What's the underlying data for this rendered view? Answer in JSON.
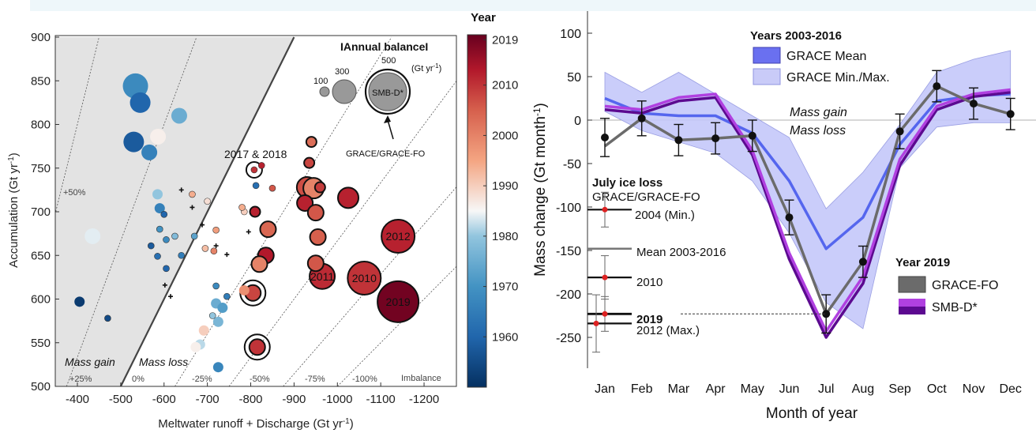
{
  "chart_data": [
    {
      "type": "scatter",
      "xlabel": "Meltwater runoff + Discharge (Gt yr",
      "xlabel_sup": "-1",
      "xlabel_end": ")",
      "ylabel": "Accumulation  (Gt yr",
      "ylabel_sup": "-1",
      "ylabel_end": ")",
      "xlim": [
        -350,
        -1250
      ],
      "ylim": [
        500,
        900
      ],
      "x_ticks": [
        -400,
        -500,
        -600,
        -700,
        -800,
        -900,
        -1000,
        -1100,
        -1200
      ],
      "y_ticks": [
        500,
        550,
        600,
        650,
        700,
        750,
        800,
        850,
        900
      ],
      "colorbar": {
        "title": "Year",
        "range": [
          1950,
          2020
        ],
        "ticks": [
          1960,
          1970,
          1980,
          1990,
          2000,
          2010,
          2019
        ]
      },
      "legend": {
        "title": "Annual balance",
        "unit": "(Gt yr",
        "unit_sup": "-1",
        "unit_end": ")",
        "sizes": [
          "100",
          "300",
          "500"
        ],
        "big_label": "SMB-D*",
        "pointer_label": "GRACE/GRACE-FO"
      },
      "region_labels": {
        "gain": "Mass gain",
        "loss": "Mass loss",
        "imbalance": "Imbalance"
      },
      "imbalance_lines": [
        "+50%",
        "+25%",
        "0%",
        "-25%",
        "-50%",
        "-75%",
        "-100%"
      ],
      "annotations": {
        "y2017_2018": "2017 & 2018"
      },
      "points": [
        {
          "x": -405,
          "y": 597,
          "year": 1952,
          "size": 3
        },
        {
          "x": -470,
          "y": 578,
          "year": 1955,
          "size": 2
        },
        {
          "x": -435,
          "y": 672,
          "year": 1984,
          "size": 4
        },
        {
          "x": -534,
          "y": 844,
          "year": 1968,
          "size": 6
        },
        {
          "x": -545,
          "y": 825,
          "year": 1960,
          "size": 5
        },
        {
          "x": -530,
          "y": 780,
          "year": 1958,
          "size": 5
        },
        {
          "x": -566,
          "y": 768,
          "year": 1966,
          "size": 4
        },
        {
          "x": -586,
          "y": 786,
          "year": 1986,
          "size": 4
        },
        {
          "x": -635,
          "y": 810,
          "year": 1975,
          "size": 4
        },
        {
          "x": -585,
          "y": 720,
          "year": 1980,
          "size": 3
        },
        {
          "x": -590,
          "y": 704,
          "year": 1966,
          "size": 3
        },
        {
          "x": -600,
          "y": 697,
          "year": 1960,
          "size": 2
        },
        {
          "x": -590,
          "y": 680,
          "year": 1970,
          "size": 2
        },
        {
          "x": -570,
          "y": 661,
          "year": 1958,
          "size": 2
        },
        {
          "x": -605,
          "y": 668,
          "year": 1968,
          "size": 2
        },
        {
          "x": -625,
          "y": 672,
          "year": 1978,
          "size": 2
        },
        {
          "x": -585,
          "y": 649,
          "year": 1962,
          "size": 2
        },
        {
          "x": -605,
          "y": 635,
          "year": 1960,
          "size": 2
        },
        {
          "x": -640,
          "y": 650,
          "year": 1965,
          "size": 2
        },
        {
          "x": -665,
          "y": 720,
          "year": 1994,
          "size": 2
        },
        {
          "x": -700,
          "y": 712,
          "year": 1988,
          "size": 2
        },
        {
          "x": -670,
          "y": 672,
          "year": 1973,
          "size": 2
        },
        {
          "x": -695,
          "y": 658,
          "year": 1992,
          "size": 2
        },
        {
          "x": -715,
          "y": 655,
          "year": 2000,
          "size": 2
        },
        {
          "x": -720,
          "y": 679,
          "year": 1996,
          "size": 2
        },
        {
          "x": -720,
          "y": 615,
          "year": 1968,
          "size": 2
        },
        {
          "x": -720,
          "y": 595,
          "year": 1975,
          "size": 3
        },
        {
          "x": -712,
          "y": 581,
          "year": 1980,
          "size": 2
        },
        {
          "x": -725,
          "y": 574,
          "year": 1977,
          "size": 3
        },
        {
          "x": -735,
          "y": 590,
          "year": 1972,
          "size": 3
        },
        {
          "x": -745,
          "y": 603,
          "year": 1965,
          "size": 2
        },
        {
          "x": -692,
          "y": 564,
          "year": 1990,
          "size": 3
        },
        {
          "x": -683,
          "y": 548,
          "year": 1982,
          "size": 3
        },
        {
          "x": -673,
          "y": 545,
          "year": 1986,
          "size": 3
        },
        {
          "x": -725,
          "y": 522,
          "year": 1967,
          "size": 3
        },
        {
          "x": -785,
          "y": 610,
          "year": 1998,
          "size": 3
        },
        {
          "x": -805,
          "y": 607,
          "year": 2008,
          "size": 4,
          "ring": true
        },
        {
          "x": -785,
          "y": 700,
          "year": 1990,
          "size": 2
        },
        {
          "x": -780,
          "y": 705,
          "year": 1994,
          "size": 2
        },
        {
          "x": -812,
          "y": 730,
          "year": 1962,
          "size": 2
        },
        {
          "x": -808,
          "y": 748,
          "year": 2010,
          "size": 2,
          "ring": true
        },
        {
          "x": -825,
          "y": 753,
          "year": 2012,
          "size": 2
        },
        {
          "x": -810,
          "y": 700,
          "year": 2012,
          "size": 3
        },
        {
          "x": -840,
          "y": 680,
          "year": 2004,
          "size": 4
        },
        {
          "x": -835,
          "y": 650,
          "year": 2013,
          "size": 4
        },
        {
          "x": -820,
          "y": 640,
          "year": 2000,
          "size": 4
        },
        {
          "x": -815,
          "y": 545,
          "year": 2010,
          "size": 4,
          "ring": true
        },
        {
          "x": -850,
          "y": 727,
          "year": 2006,
          "size": 2
        },
        {
          "x": -940,
          "y": 780,
          "year": 2003,
          "size": 3
        },
        {
          "x": -935,
          "y": 756,
          "year": 2008,
          "size": 3
        },
        {
          "x": -930,
          "y": 728,
          "year": 2007,
          "size": 5
        },
        {
          "x": -945,
          "y": 727,
          "year": 2000,
          "size": 5
        },
        {
          "x": -960,
          "y": 728,
          "year": 2009,
          "size": 3
        },
        {
          "x": -925,
          "y": 710,
          "year": 2012,
          "size": 4
        },
        {
          "x": -950,
          "y": 699,
          "year": 2006,
          "size": 4
        },
        {
          "x": -955,
          "y": 671,
          "year": 2005,
          "size": 4
        },
        {
          "x": -950,
          "y": 641,
          "year": 2006,
          "size": 4
        },
        {
          "x": -965,
          "y": 626,
          "year": 2011,
          "size": 6,
          "label": "2011"
        },
        {
          "x": -1025,
          "y": 716,
          "year": 2012,
          "size": 5
        },
        {
          "x": -1062,
          "y": 624,
          "year": 2010,
          "size": 7,
          "label": "2010"
        },
        {
          "x": -1140,
          "y": 672,
          "year": 2012,
          "size": 7,
          "label": "2012"
        },
        {
          "x": -1140,
          "y": 597,
          "year": 2019,
          "size": 8,
          "label": "2019"
        }
      ]
    },
    {
      "type": "line",
      "xlabel": "Month of year",
      "ylabel": "Mass change (Gt month",
      "ylabel_sup": "-1",
      "ylabel_end": ")",
      "categories": [
        "Jan",
        "Feb",
        "Mar",
        "Apr",
        "May",
        "Jun",
        "Jul",
        "Aug",
        "Sep",
        "Oct",
        "Nov",
        "Dec"
      ],
      "ylim": [
        -260,
        110
      ],
      "y_ticks": [
        -250,
        -200,
        -150,
        -100,
        -50,
        0,
        50,
        100
      ],
      "legend_years": {
        "title": "Years 2003-2016",
        "mean_label": "GRACE Mean",
        "minmax_label": "GRACE Min./Max."
      },
      "legend_2019": {
        "title": "Year 2019",
        "grace_fo": "GRACE-FO",
        "smb": "SMB-D*"
      },
      "gain_label": "Mass gain",
      "loss_label": "Mass loss",
      "ice_loss": {
        "title": "July ice loss",
        "subtitle": "GRACE/GRACE-FO",
        "y2004": "2004 (Min.)",
        "mean": "Mean 2003-2016",
        "y2010": "2010",
        "y2019": "2019",
        "y2012": "2012 (Max.)"
      },
      "series": [
        {
          "name": "GRACE Mean",
          "color": "#5566ee",
          "values": [
            25,
            8,
            5,
            5,
            -15,
            -70,
            -148,
            -112,
            -28,
            22,
            28,
            30
          ]
        },
        {
          "name": "GRACE Min./Max.",
          "color": "#c5c8fa",
          "upper": [
            55,
            32,
            55,
            30,
            5,
            -20,
            -102,
            -60,
            -5,
            55,
            70,
            80
          ],
          "lower": [
            10,
            -12,
            -25,
            -38,
            -70,
            -130,
            -210,
            -240,
            -55,
            -8,
            -3,
            -3
          ]
        },
        {
          "name": "GRACE-FO 2019",
          "color": "#666666",
          "values": [
            -30,
            2,
            -23,
            -21,
            -18,
            -112,
            -223,
            -163,
            -13,
            39,
            19,
            7
          ],
          "errors": [
            22,
            20,
            18,
            18,
            18,
            20,
            22,
            18,
            20,
            18,
            18,
            18
          ]
        },
        {
          "name": "SMB-D* 2019 A",
          "color": "#7b0ea8",
          "values": [
            12,
            8,
            22,
            26,
            -40,
            -160,
            -250,
            -188,
            -52,
            12,
            27,
            32
          ]
        },
        {
          "name": "SMB-D* 2019 B",
          "color": "#b040e0",
          "values": [
            16,
            12,
            26,
            30,
            -35,
            -153,
            -243,
            -180,
            -45,
            16,
            30,
            35
          ]
        }
      ],
      "july_points": [
        {
          "label_key": "y2004",
          "value": -103,
          "err": 20
        },
        {
          "label_key": "y2010",
          "value": -181,
          "err": 25
        },
        {
          "label_key": "y2019",
          "value": -223,
          "err": 20
        },
        {
          "label_key": "y2012",
          "value": -234,
          "err": 33
        }
      ],
      "mean_july": -148
    }
  ]
}
